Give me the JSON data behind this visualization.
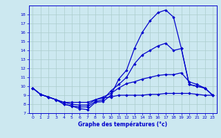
{
  "background_color": "#cce8f0",
  "grid_color": "#aacccc",
  "line_color": "#0000cc",
  "title": "Graphe des températures (°c)",
  "xlim": [
    -0.5,
    23.5
  ],
  "ylim": [
    7,
    19
  ],
  "yticks": [
    7,
    8,
    9,
    10,
    11,
    12,
    13,
    14,
    15,
    16,
    17,
    18
  ],
  "xticks": [
    0,
    1,
    2,
    3,
    4,
    5,
    6,
    7,
    8,
    9,
    10,
    11,
    12,
    13,
    14,
    15,
    16,
    17,
    18,
    19,
    20,
    21,
    22,
    23
  ],
  "line1": {
    "x": [
      0,
      1,
      2,
      3,
      4,
      5,
      6,
      7,
      8,
      9,
      10,
      11,
      12,
      13,
      14,
      15,
      16,
      17,
      18,
      19,
      20,
      21,
      22,
      23
    ],
    "y": [
      9.8,
      9.1,
      8.8,
      8.5,
      8.0,
      7.8,
      7.5,
      7.4,
      8.2,
      8.3,
      9.0,
      10.8,
      11.8,
      14.2,
      16.0,
      17.3,
      18.2,
      18.5,
      17.7,
      14.2,
      10.2,
      10.0,
      9.8,
      9.0
    ]
  },
  "line2": {
    "x": [
      0,
      1,
      2,
      3,
      4,
      5,
      6,
      7,
      8,
      9,
      10,
      11,
      12,
      13,
      14,
      15,
      16,
      17,
      18,
      19,
      20,
      21,
      22,
      23
    ],
    "y": [
      9.8,
      9.1,
      8.8,
      8.5,
      8.0,
      7.8,
      7.7,
      7.7,
      8.3,
      8.5,
      9.5,
      10.2,
      11.0,
      12.5,
      13.5,
      14.0,
      14.5,
      14.8,
      14.0,
      14.2,
      10.2,
      10.0,
      9.8,
      9.0
    ]
  },
  "line3": {
    "x": [
      0,
      1,
      2,
      3,
      4,
      5,
      6,
      7,
      8,
      9,
      10,
      11,
      12,
      13,
      14,
      15,
      16,
      17,
      18,
      19,
      20,
      21,
      22,
      23
    ],
    "y": [
      9.8,
      9.1,
      8.8,
      8.5,
      8.2,
      8.0,
      7.9,
      7.9,
      8.5,
      8.8,
      9.2,
      9.8,
      10.3,
      10.5,
      10.8,
      11.0,
      11.2,
      11.3,
      11.3,
      11.5,
      10.5,
      10.2,
      9.8,
      9.0
    ]
  },
  "line4": {
    "x": [
      0,
      1,
      2,
      3,
      4,
      5,
      6,
      7,
      8,
      9,
      10,
      11,
      12,
      13,
      14,
      15,
      16,
      17,
      18,
      19,
      20,
      21,
      22,
      23
    ],
    "y": [
      9.8,
      9.1,
      8.8,
      8.5,
      8.2,
      8.2,
      8.2,
      8.2,
      8.5,
      8.7,
      8.8,
      9.0,
      9.0,
      9.0,
      9.0,
      9.1,
      9.1,
      9.2,
      9.2,
      9.2,
      9.2,
      9.1,
      9.0,
      9.0
    ]
  }
}
